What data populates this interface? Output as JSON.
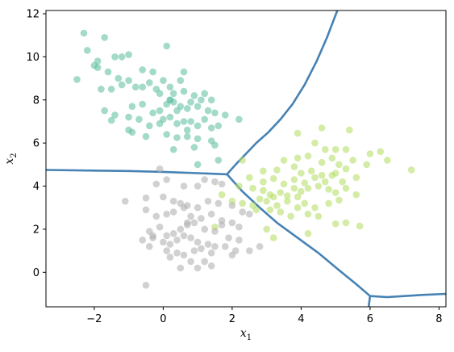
{
  "chart_data": {
    "type": "scatter",
    "title": "",
    "xlabel": "x",
    "xlabel_sub": "1",
    "ylabel": "x",
    "ylabel_sub": "2",
    "xlim": [
      -3.4,
      8.2
    ],
    "ylim": [
      -1.6,
      12.15
    ],
    "xticks": [
      -2,
      0,
      2,
      4,
      6,
      8
    ],
    "yticks": [
      0,
      2,
      4,
      6,
      8,
      10,
      12
    ],
    "grid": false,
    "colors": {
      "cluster_top": "#66c2a5",
      "cluster_right": "#b8e06a",
      "cluster_bottom": "#b3b3b3",
      "boundary": "#4682b4"
    },
    "series": [
      {
        "color": "#66c2a5",
        "points": [
          [
            -2.3,
            11.1
          ],
          [
            -2.2,
            10.3
          ],
          [
            -1.7,
            10.9
          ],
          [
            -1.4,
            10.0
          ],
          [
            -1.2,
            10.0
          ],
          [
            -1.0,
            10.1
          ],
          [
            0.1,
            10.5
          ],
          [
            -1.9,
            9.8
          ],
          [
            -2.0,
            9.6
          ],
          [
            -1.9,
            9.5
          ],
          [
            -1.6,
            9.3
          ],
          [
            -1.3,
            9.0
          ],
          [
            -0.6,
            9.4
          ],
          [
            -0.3,
            9.3
          ],
          [
            0.6,
            9.3
          ],
          [
            -2.5,
            8.95
          ],
          [
            -1.8,
            8.5
          ],
          [
            -1.5,
            8.5
          ],
          [
            -1.2,
            8.7
          ],
          [
            -1.0,
            8.9
          ],
          [
            -0.8,
            8.6
          ],
          [
            -0.4,
            8.8
          ],
          [
            -0.2,
            8.5
          ],
          [
            0.0,
            8.9
          ],
          [
            0.2,
            8.6
          ],
          [
            0.5,
            8.9
          ],
          [
            0.3,
            8.3
          ],
          [
            -0.6,
            8.6
          ],
          [
            -0.1,
            8.3
          ],
          [
            0.6,
            8.4
          ],
          [
            0.9,
            8.2
          ],
          [
            1.2,
            8.3
          ],
          [
            1.4,
            8.0
          ],
          [
            -1.7,
            7.5
          ],
          [
            -1.4,
            7.3
          ],
          [
            -0.9,
            7.7
          ],
          [
            -0.6,
            7.8
          ],
          [
            -0.3,
            7.4
          ],
          [
            -0.1,
            7.5
          ],
          [
            0.1,
            7.8
          ],
          [
            0.2,
            8.0
          ],
          [
            0.3,
            7.9
          ],
          [
            0.4,
            7.5
          ],
          [
            0.5,
            7.7
          ],
          [
            0.7,
            7.6
          ],
          [
            0.8,
            7.9
          ],
          [
            1.0,
            7.7
          ],
          [
            1.1,
            8.0
          ],
          [
            1.3,
            7.5
          ],
          [
            1.5,
            7.4
          ],
          [
            1.8,
            7.3
          ],
          [
            -1.5,
            7.05
          ],
          [
            -1.0,
            7.2
          ],
          [
            -0.7,
            7.1
          ],
          [
            -0.4,
            6.8
          ],
          [
            -0.1,
            6.9
          ],
          [
            0.0,
            7.1
          ],
          [
            0.2,
            7.2
          ],
          [
            0.4,
            6.9
          ],
          [
            0.6,
            7.0
          ],
          [
            0.7,
            6.6
          ],
          [
            0.8,
            7.0
          ],
          [
            1.0,
            6.8
          ],
          [
            1.2,
            7.1
          ],
          [
            1.4,
            6.7
          ],
          [
            1.6,
            6.8
          ],
          [
            2.2,
            7.1
          ],
          [
            -1.0,
            6.6
          ],
          [
            -0.9,
            6.5
          ],
          [
            -0.5,
            6.3
          ],
          [
            0.1,
            6.4
          ],
          [
            0.4,
            6.25
          ],
          [
            0.7,
            6.3
          ],
          [
            1.0,
            6.2
          ],
          [
            1.4,
            6.1
          ],
          [
            1.5,
            5.9
          ],
          [
            0.3,
            5.7
          ],
          [
            0.9,
            5.8
          ],
          [
            1.6,
            5.2
          ],
          [
            1.0,
            5.0
          ],
          [
            0.2,
            8.0
          ]
        ]
      },
      {
        "color": "#b8e06a",
        "points": [
          [
            4.6,
            6.7
          ],
          [
            5.4,
            6.6
          ],
          [
            3.9,
            6.45
          ],
          [
            4.4,
            6.0
          ],
          [
            4.7,
            5.7
          ],
          [
            5.0,
            5.7
          ],
          [
            5.3,
            5.7
          ],
          [
            6.3,
            5.6
          ],
          [
            6.0,
            5.5
          ],
          [
            2.3,
            5.2
          ],
          [
            3.5,
            5.2
          ],
          [
            3.9,
            5.3
          ],
          [
            4.2,
            5.4
          ],
          [
            4.6,
            5.1
          ],
          [
            4.9,
            5.3
          ],
          [
            5.1,
            5.0
          ],
          [
            5.5,
            5.2
          ],
          [
            5.9,
            5.0
          ],
          [
            6.5,
            5.2
          ],
          [
            7.2,
            4.75
          ],
          [
            2.9,
            4.7
          ],
          [
            3.3,
            4.75
          ],
          [
            3.8,
            4.9
          ],
          [
            4.0,
            4.6
          ],
          [
            4.3,
            4.7
          ],
          [
            4.6,
            4.5
          ],
          [
            5.0,
            4.6
          ],
          [
            5.3,
            4.8
          ],
          [
            5.6,
            4.4
          ],
          [
            2.5,
            4.4
          ],
          [
            2.9,
            4.2
          ],
          [
            3.2,
            4.35
          ],
          [
            3.5,
            4.1
          ],
          [
            3.8,
            4.3
          ],
          [
            4.1,
            4.15
          ],
          [
            4.4,
            4.4
          ],
          [
            4.7,
            4.2
          ],
          [
            4.9,
            4.5
          ],
          [
            5.2,
            4.2
          ],
          [
            2.2,
            4.0
          ],
          [
            2.6,
            3.9
          ],
          [
            2.9,
            3.8
          ],
          [
            3.1,
            3.6
          ],
          [
            3.2,
            3.5
          ],
          [
            3.4,
            3.7
          ],
          [
            3.6,
            3.55
          ],
          [
            3.8,
            3.9
          ],
          [
            4.0,
            3.75
          ],
          [
            4.2,
            3.9
          ],
          [
            4.5,
            4.0
          ],
          [
            4.8,
            3.85
          ],
          [
            5.0,
            3.7
          ],
          [
            5.3,
            3.9
          ],
          [
            5.6,
            3.6
          ],
          [
            1.7,
            3.6
          ],
          [
            2.0,
            3.3
          ],
          [
            2.3,
            3.2
          ],
          [
            2.6,
            3.1
          ],
          [
            2.8,
            3.4
          ],
          [
            3.0,
            3.3
          ],
          [
            3.3,
            3.1
          ],
          [
            3.6,
            3.3
          ],
          [
            3.9,
            3.5
          ],
          [
            4.1,
            3.2
          ],
          [
            4.4,
            3.0
          ],
          [
            4.8,
            3.2
          ],
          [
            5.1,
            3.35
          ],
          [
            2.7,
            2.9
          ],
          [
            3.1,
            2.9
          ],
          [
            3.4,
            2.8
          ],
          [
            3.7,
            2.6
          ],
          [
            3.9,
            3.0
          ],
          [
            4.2,
            2.7
          ],
          [
            4.5,
            2.6
          ],
          [
            5.3,
            2.3
          ],
          [
            5.0,
            2.25
          ],
          [
            3.0,
            2.0
          ],
          [
            3.2,
            1.6
          ],
          [
            4.2,
            1.8
          ],
          [
            5.7,
            2.15
          ],
          [
            1.5,
            2.1
          ]
        ]
      },
      {
        "color": "#b3b3b3",
        "points": [
          [
            -0.1,
            4.8
          ],
          [
            1.2,
            4.3
          ],
          [
            1.5,
            4.2
          ],
          [
            1.7,
            4.1
          ],
          [
            0.1,
            4.3
          ],
          [
            0.6,
            4.0
          ],
          [
            1.0,
            4.0
          ],
          [
            -0.2,
            4.1
          ],
          [
            -0.5,
            3.45
          ],
          [
            -1.1,
            3.3
          ],
          [
            0.0,
            3.5
          ],
          [
            0.3,
            3.3
          ],
          [
            0.7,
            3.1
          ],
          [
            1.0,
            3.0
          ],
          [
            1.3,
            3.3
          ],
          [
            1.6,
            3.2
          ],
          [
            2.0,
            3.1
          ],
          [
            2.3,
            2.8
          ],
          [
            -0.5,
            2.9
          ],
          [
            -0.2,
            2.6
          ],
          [
            0.1,
            2.7
          ],
          [
            0.3,
            2.8
          ],
          [
            0.6,
            3.0
          ],
          [
            0.8,
            2.6
          ],
          [
            1.1,
            2.5
          ],
          [
            1.4,
            2.7
          ],
          [
            1.7,
            2.4
          ],
          [
            2.0,
            2.3
          ],
          [
            2.2,
            2.1
          ],
          [
            2.5,
            2.7
          ],
          [
            -0.4,
            1.9
          ],
          [
            -0.1,
            2.1
          ],
          [
            0.1,
            1.7
          ],
          [
            0.3,
            1.8
          ],
          [
            0.5,
            2.0
          ],
          [
            0.7,
            2.2
          ],
          [
            0.9,
            2.3
          ],
          [
            1.2,
            2.0
          ],
          [
            1.5,
            1.9
          ],
          [
            1.7,
            2.2
          ],
          [
            1.9,
            1.6
          ],
          [
            2.2,
            1.5
          ],
          [
            -0.6,
            1.5
          ],
          [
            -0.3,
            1.6
          ],
          [
            0.0,
            1.4
          ],
          [
            0.2,
            1.3
          ],
          [
            0.4,
            1.5
          ],
          [
            0.6,
            1.7
          ],
          [
            0.8,
            1.6
          ],
          [
            1.0,
            1.4
          ],
          [
            1.3,
            1.3
          ],
          [
            1.5,
            1.2
          ],
          [
            1.8,
            1.2
          ],
          [
            2.1,
            1.0
          ],
          [
            -0.4,
            1.2
          ],
          [
            0.1,
            1.0
          ],
          [
            0.4,
            0.9
          ],
          [
            0.6,
            0.8
          ],
          [
            0.9,
            1.0
          ],
          [
            1.1,
            1.1
          ],
          [
            1.4,
            0.9
          ],
          [
            2.0,
            0.8
          ],
          [
            2.8,
            1.2
          ],
          [
            2.5,
            1.0
          ],
          [
            0.2,
            0.7
          ],
          [
            0.8,
            0.5
          ],
          [
            1.2,
            0.5
          ],
          [
            1.4,
            0.3
          ],
          [
            0.5,
            0.2
          ],
          [
            1.0,
            0.2
          ],
          [
            -0.5,
            -0.6
          ],
          [
            0.5,
            3.2
          ],
          [
            0.7,
            2.3
          ],
          [
            -0.3,
            1.7
          ]
        ]
      }
    ],
    "boundaries": [
      [
        [
          -3.4,
          4.75
        ],
        [
          -2.0,
          4.72
        ],
        [
          -1.0,
          4.7
        ],
        [
          0.0,
          4.66
        ],
        [
          1.0,
          4.6
        ],
        [
          1.85,
          4.55
        ]
      ],
      [
        [
          1.85,
          4.55
        ],
        [
          2.1,
          5.0
        ],
        [
          2.4,
          5.5
        ],
        [
          2.7,
          6.0
        ],
        [
          3.05,
          6.5
        ],
        [
          3.4,
          7.1
        ],
        [
          3.75,
          7.8
        ],
        [
          4.1,
          8.7
        ],
        [
          4.45,
          9.8
        ],
        [
          4.75,
          10.9
        ],
        [
          5.05,
          12.15
        ]
      ],
      [
        [
          1.85,
          4.55
        ],
        [
          2.3,
          3.75
        ],
        [
          2.8,
          3.0
        ],
        [
          3.3,
          2.3
        ],
        [
          3.9,
          1.6
        ],
        [
          4.5,
          0.9
        ],
        [
          5.1,
          0.1
        ],
        [
          5.6,
          -0.55
        ],
        [
          6.0,
          -1.1
        ]
      ],
      [
        [
          6.0,
          -1.1
        ],
        [
          6.5,
          -1.15
        ],
        [
          7.0,
          -1.1
        ],
        [
          7.5,
          -1.05
        ],
        [
          8.2,
          -1.0
        ]
      ],
      [
        [
          6.0,
          -1.1
        ],
        [
          5.96,
          -1.6
        ]
      ]
    ]
  }
}
